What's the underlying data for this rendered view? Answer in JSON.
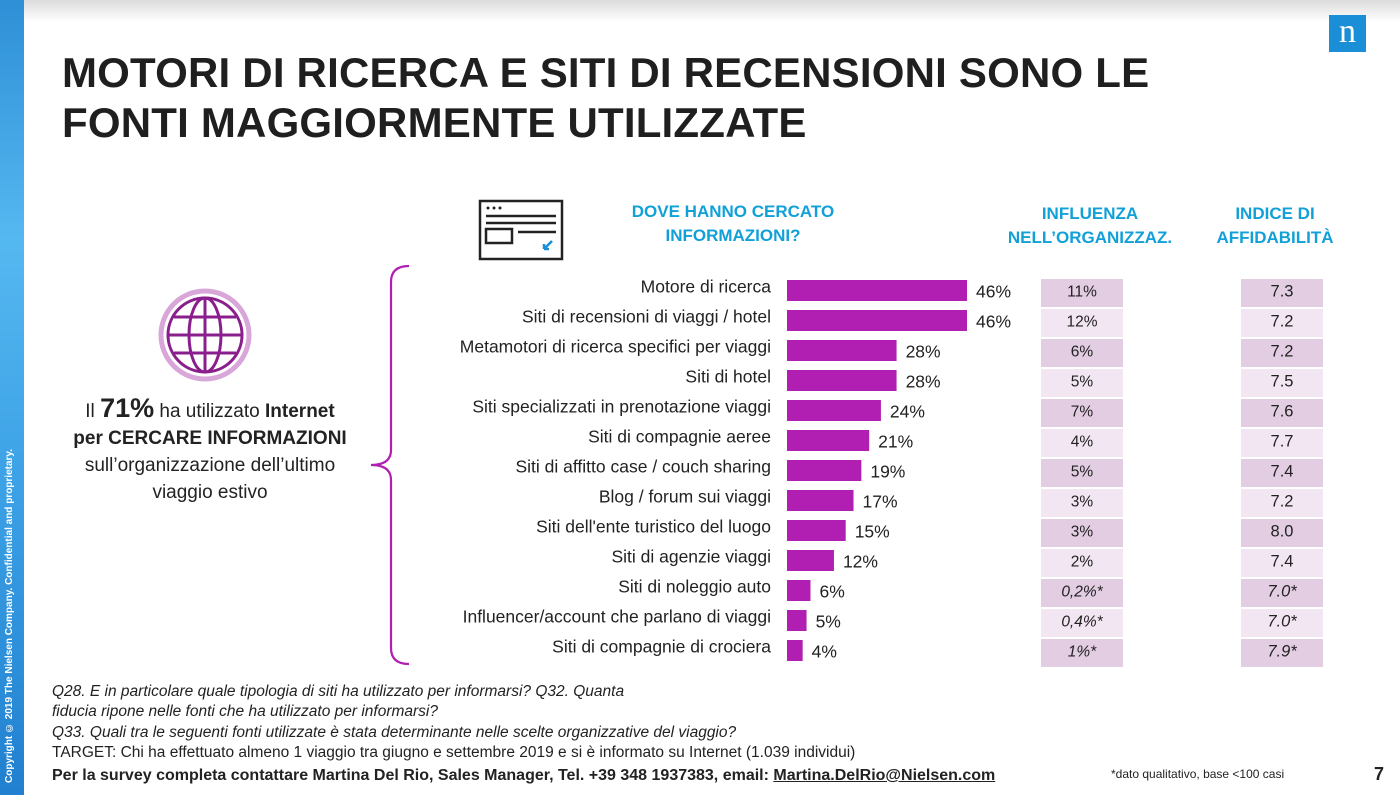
{
  "logo_letter": "n",
  "copyright": "Copyright © 2019 The Nielsen Company. Confidential and proprietary.",
  "title_line1": "MOTORI DI RICERCA E SITI DI RECENSIONI SONO LE",
  "title_line2": "FONTI MAGGIORMENTE UTILIZZATE",
  "side": {
    "p1": "Il ",
    "pct": "71%",
    "p2": " ha utilizzato ",
    "p3": "Internet",
    "p4": "per CERCARE INFORMAZIONI",
    "p5": "sull’organizzazione dell’ultimo",
    "p6": "viaggio estivo"
  },
  "headers": {
    "where_l1": "DOVE HANNO CERCATO",
    "where_l2": "INFORMAZIONI?",
    "infl_l1": "INFLUENZA",
    "infl_l2": "NELL’ORGANIZZAZ.",
    "idx_l1": "INDICE DI",
    "idx_l2": "AFFIDABILITÀ"
  },
  "colors": {
    "bar": "#b11fb2",
    "infl_dark": "#e3cde3",
    "infl_light": "#f3e6f3",
    "idx_dark": "#e3cde3",
    "idx_light": "#f3e6f3",
    "header": "#11a0d8",
    "accent_icon": "#1a8fd8",
    "globe": "#8a1e8c"
  },
  "chart_data": {
    "type": "bar",
    "orientation": "horizontal",
    "categories": [
      "Motore di ricerca",
      "Siti di recensioni di viaggi / hotel",
      "Metamotori di ricerca specifici per viaggi",
      "Siti di hotel",
      "Siti specializzati in prenotazione viaggi",
      "Siti di compagnie aeree",
      "Siti di affitto case / couch sharing",
      "Blog / forum sui viaggi",
      "Siti dell'ente turistico del luogo",
      "Siti di agenzie viaggi",
      "Siti di noleggio auto",
      "Influencer/account che parlano di viaggi",
      "Siti di compagnie di crociera"
    ],
    "values": [
      46,
      46,
      28,
      28,
      24,
      21,
      19,
      17,
      15,
      12,
      6,
      5,
      4
    ],
    "value_labels": [
      "46%",
      "46%",
      "28%",
      "28%",
      "24%",
      "21%",
      "19%",
      "17%",
      "15%",
      "12%",
      "6%",
      "5%",
      "4%"
    ],
    "influenza": [
      "11%",
      "12%",
      "6%",
      "5%",
      "7%",
      "4%",
      "5%",
      "3%",
      "3%",
      "2%",
      "0,2%*",
      "0,4%*",
      "1%*"
    ],
    "affidabilita": [
      "7.3",
      "7.2",
      "7.2",
      "7.5",
      "7.6",
      "7.7",
      "7.4",
      "7.2",
      "8.0",
      "7.4",
      "7.0*",
      "7.0*",
      "7.9*"
    ],
    "qualitative": [
      false,
      false,
      false,
      false,
      false,
      false,
      false,
      false,
      false,
      false,
      true,
      true,
      true
    ],
    "xlim": [
      0,
      46
    ],
    "grid": false
  },
  "notes": {
    "q28_l1": "Q28. E in particolare quale tipologia di siti ha utilizzato per informarsi?  Q32. Quanta",
    "q28_l2": "fiducia ripone nelle fonti che ha utilizzato per informarsi?",
    "q33": "Q33. Quali tra le seguenti fonti utilizzate è stata determinante nelle scelte organizzative del viaggio?",
    "target": "TARGET: Chi ha effettuato almeno 1 viaggio tra giugno e settembre 2019 e si è informato su Internet (1.039 individui)",
    "contact": "Per la survey completa contattare Martina Del Rio, Sales Manager, Tel. +39 348 1937383, email: ",
    "email": "Martina.DelRio@Nielsen.com",
    "footnote": "*dato qualitativo, base <100 casi",
    "page": "7"
  }
}
